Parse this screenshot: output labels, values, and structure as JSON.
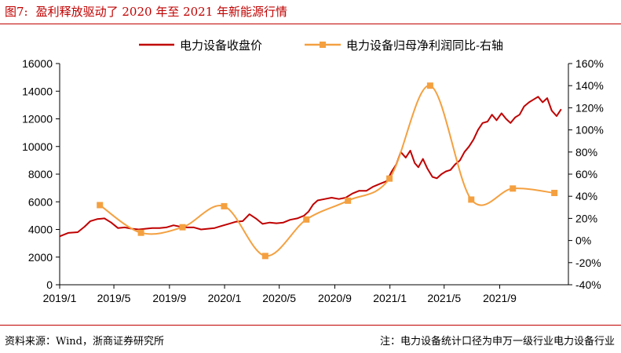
{
  "figure": {
    "number": "图7:",
    "title": "盈利释放驱动了 2020 年至 2021 年新能源行情",
    "source": "资料来源：Wind，浙商证券研究所",
    "note": "注：电力设备统计口径为申万一级行业电力设备行业"
  },
  "colors": {
    "price": "#c00000",
    "yoy": "#f4a040",
    "rule": "#c00000"
  },
  "chart_data": {
    "type": "line",
    "legend_position": "top",
    "grid": false,
    "x_ticks": [
      "2019/1",
      "2019/5",
      "2019/9",
      "2020/1",
      "2020/5",
      "2020/9",
      "2021/1",
      "2021/5",
      "2021/9"
    ],
    "x_range": [
      "2019-01-01",
      "2022-01-31"
    ],
    "y_left": {
      "ticks": [
        "0",
        "2000",
        "4000",
        "6000",
        "8000",
        "10000",
        "12000",
        "14000",
        "16000"
      ],
      "range": [
        0,
        16000
      ]
    },
    "y_right": {
      "ticks": [
        "-40%",
        "-20%",
        "0%",
        "20%",
        "40%",
        "60%",
        "80%",
        "100%",
        "120%",
        "140%",
        "160%"
      ],
      "range": [
        -40,
        160
      ]
    },
    "series": [
      {
        "name": "电力设备收盘价",
        "axis": "left",
        "style": "line",
        "points": [
          [
            "2019-01-01",
            3500
          ],
          [
            "2019-01-20",
            3750
          ],
          [
            "2019-02-10",
            3800
          ],
          [
            "2019-02-25",
            4200
          ],
          [
            "2019-03-10",
            4600
          ],
          [
            "2019-03-25",
            4750
          ],
          [
            "2019-04-10",
            4800
          ],
          [
            "2019-04-25",
            4500
          ],
          [
            "2019-05-10",
            4100
          ],
          [
            "2019-05-25",
            4150
          ],
          [
            "2019-06-10",
            4050
          ],
          [
            "2019-06-25",
            4000
          ],
          [
            "2019-07-10",
            4050
          ],
          [
            "2019-07-25",
            4100
          ],
          [
            "2019-08-10",
            4100
          ],
          [
            "2019-08-25",
            4150
          ],
          [
            "2019-09-10",
            4300
          ],
          [
            "2019-09-25",
            4200
          ],
          [
            "2019-10-10",
            4150
          ],
          [
            "2019-10-25",
            4150
          ],
          [
            "2019-11-10",
            4000
          ],
          [
            "2019-11-25",
            4050
          ],
          [
            "2019-12-10",
            4100
          ],
          [
            "2019-12-25",
            4250
          ],
          [
            "2020-01-10",
            4400
          ],
          [
            "2020-01-25",
            4550
          ],
          [
            "2020-02-10",
            4600
          ],
          [
            "2020-02-25",
            5100
          ],
          [
            "2020-03-10",
            4800
          ],
          [
            "2020-03-25",
            4400
          ],
          [
            "2020-04-10",
            4500
          ],
          [
            "2020-04-25",
            4450
          ],
          [
            "2020-05-10",
            4500
          ],
          [
            "2020-05-25",
            4700
          ],
          [
            "2020-06-10",
            4800
          ],
          [
            "2020-06-25",
            5000
          ],
          [
            "2020-07-05",
            5300
          ],
          [
            "2020-07-15",
            5800
          ],
          [
            "2020-07-25",
            6100
          ],
          [
            "2020-08-10",
            6200
          ],
          [
            "2020-08-25",
            6300
          ],
          [
            "2020-09-10",
            6200
          ],
          [
            "2020-09-25",
            6300
          ],
          [
            "2020-10-10",
            6600
          ],
          [
            "2020-10-25",
            6800
          ],
          [
            "2020-11-10",
            6800
          ],
          [
            "2020-11-25",
            7100
          ],
          [
            "2020-12-10",
            7300
          ],
          [
            "2020-12-25",
            7500
          ],
          [
            "2021-01-05",
            8200
          ],
          [
            "2021-01-15",
            8700
          ],
          [
            "2021-01-25",
            9600
          ],
          [
            "2021-02-05",
            9200
          ],
          [
            "2021-02-15",
            9700
          ],
          [
            "2021-02-25",
            8800
          ],
          [
            "2021-03-05",
            8500
          ],
          [
            "2021-03-15",
            9100
          ],
          [
            "2021-03-25",
            8400
          ],
          [
            "2021-04-05",
            7800
          ],
          [
            "2021-04-15",
            7700
          ],
          [
            "2021-04-25",
            8000
          ],
          [
            "2021-05-05",
            8200
          ],
          [
            "2021-05-15",
            8300
          ],
          [
            "2021-05-25",
            8700
          ],
          [
            "2021-06-05",
            9000
          ],
          [
            "2021-06-15",
            9600
          ],
          [
            "2021-06-25",
            10000
          ],
          [
            "2021-07-05",
            10500
          ],
          [
            "2021-07-15",
            11200
          ],
          [
            "2021-07-25",
            11700
          ],
          [
            "2021-08-05",
            11800
          ],
          [
            "2021-08-15",
            12300
          ],
          [
            "2021-08-25",
            11900
          ],
          [
            "2021-09-05",
            12400
          ],
          [
            "2021-09-15",
            12000
          ],
          [
            "2021-09-25",
            11700
          ],
          [
            "2021-10-05",
            12100
          ],
          [
            "2021-10-15",
            12300
          ],
          [
            "2021-10-25",
            12900
          ],
          [
            "2021-11-05",
            13200
          ],
          [
            "2021-11-15",
            13400
          ],
          [
            "2021-11-25",
            13600
          ],
          [
            "2021-12-05",
            13200
          ],
          [
            "2021-12-15",
            13500
          ],
          [
            "2021-12-25",
            12600
          ],
          [
            "2022-01-05",
            12200
          ],
          [
            "2022-01-15",
            12700
          ]
        ]
      },
      {
        "name": "电力设备归母净利润同比-右轴",
        "axis": "right",
        "style": "line-markers",
        "points": [
          [
            "2019-03-31",
            32
          ],
          [
            "2019-06-30",
            7
          ],
          [
            "2019-09-30",
            12
          ],
          [
            "2019-12-31",
            31
          ],
          [
            "2020-03-31",
            -14
          ],
          [
            "2020-06-30",
            19
          ],
          [
            "2020-09-30",
            36
          ],
          [
            "2020-12-31",
            56
          ],
          [
            "2021-03-31",
            140
          ],
          [
            "2021-06-30",
            37
          ],
          [
            "2021-09-30",
            47
          ],
          [
            "2021-12-31",
            43
          ]
        ]
      }
    ]
  }
}
